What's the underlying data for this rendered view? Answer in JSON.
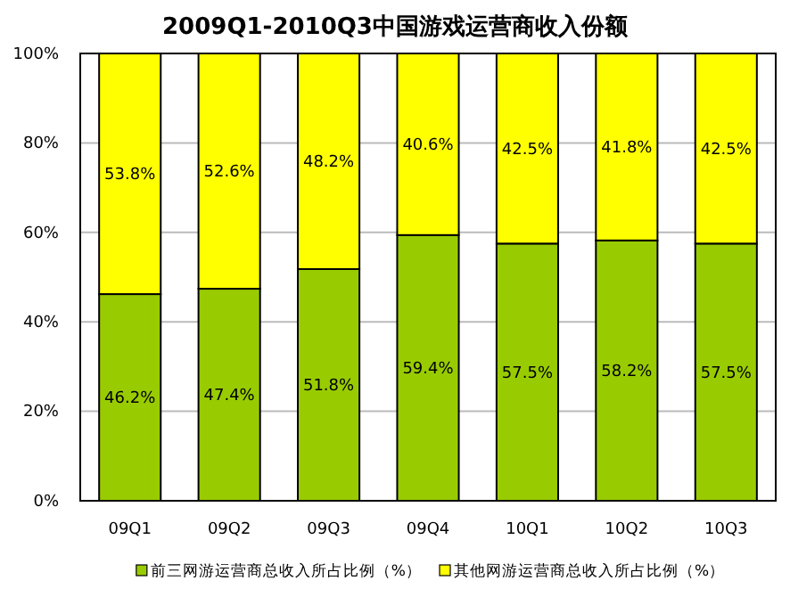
{
  "chart_data": {
    "type": "bar",
    "stacked": true,
    "title": "2009Q1-2010Q3中国游戏运营商收入份额",
    "categories": [
      "09Q1",
      "09Q2",
      "09Q3",
      "09Q4",
      "10Q1",
      "10Q2",
      "10Q3"
    ],
    "series": [
      {
        "name": "前三网游运营商总收入所占比例（%）",
        "color": "#99cc00",
        "values": [
          46.2,
          47.4,
          51.8,
          59.4,
          57.5,
          58.2,
          57.5
        ],
        "value_labels": [
          "46.2%",
          "47.4%",
          "51.8%",
          "59.4%",
          "57.5%",
          "58.2%",
          "57.5%"
        ]
      },
      {
        "name": "其他网游运营商总收入所占比例（%）",
        "color": "#ffff00",
        "values": [
          53.8,
          52.6,
          48.2,
          40.6,
          42.5,
          41.8,
          42.5
        ],
        "value_labels": [
          "53.8%",
          "52.6%",
          "48.2%",
          "40.6%",
          "42.5%",
          "41.8%",
          "42.5%"
        ]
      }
    ],
    "ylim": [
      0,
      100
    ],
    "yticks": [
      {
        "value": 0,
        "label": "0%"
      },
      {
        "value": 20,
        "label": "20%"
      },
      {
        "value": 40,
        "label": "40%"
      },
      {
        "value": 60,
        "label": "60%"
      },
      {
        "value": 80,
        "label": "80%"
      },
      {
        "value": 100,
        "label": "100%"
      }
    ],
    "grid": "y",
    "legend": "bottom"
  }
}
